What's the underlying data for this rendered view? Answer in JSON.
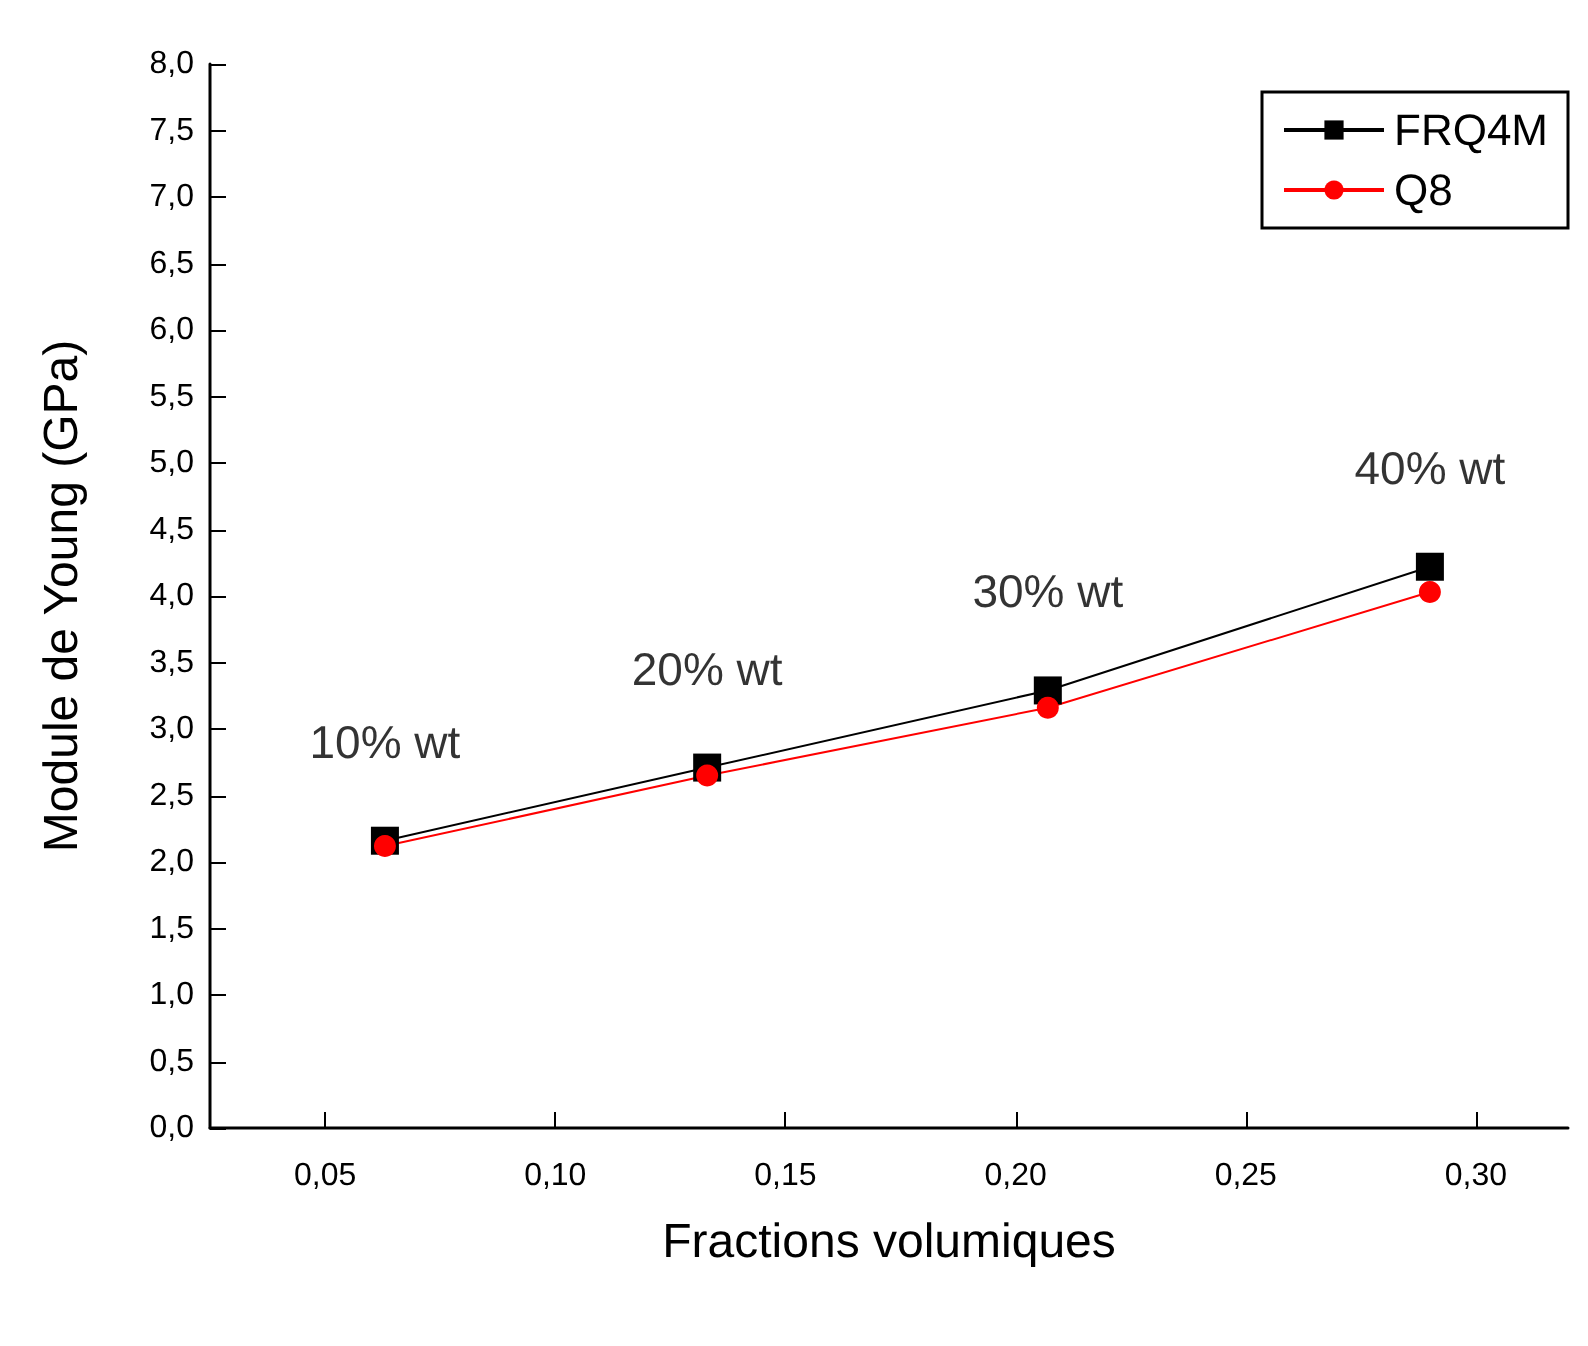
{
  "chart_data": {
    "type": "line",
    "xlabel": "Fractions volumiques",
    "ylabel": "Module de Young (GPa)",
    "xlim": [
      0.025,
      0.32
    ],
    "xticks": [
      {
        "value": 0.05,
        "label": "0,05"
      },
      {
        "value": 0.1,
        "label": "0,10"
      },
      {
        "value": 0.15,
        "label": "0,15"
      },
      {
        "value": 0.2,
        "label": "0,20"
      },
      {
        "value": 0.25,
        "label": "0,25"
      },
      {
        "value": 0.3,
        "label": "0,30"
      }
    ],
    "ylim": [
      0,
      8
    ],
    "yticks": [
      {
        "value": 0,
        "label": "0,0"
      },
      {
        "value": 0.5,
        "label": "0,5"
      },
      {
        "value": 1,
        "label": "1,0"
      },
      {
        "value": 1.5,
        "label": "1,5"
      },
      {
        "value": 2,
        "label": "2,0"
      },
      {
        "value": 2.5,
        "label": "2,5"
      },
      {
        "value": 3,
        "label": "3,0"
      },
      {
        "value": 3.5,
        "label": "3,5"
      },
      {
        "value": 4,
        "label": "4,0"
      },
      {
        "value": 4.5,
        "label": "4,5"
      },
      {
        "value": 5,
        "label": "5,0"
      },
      {
        "value": 5.5,
        "label": "5,5"
      },
      {
        "value": 6,
        "label": "6,0"
      },
      {
        "value": 6.5,
        "label": "6,5"
      },
      {
        "value": 7,
        "label": "7,0"
      },
      {
        "value": 7.5,
        "label": "7,5"
      },
      {
        "value": 8,
        "label": "8,0"
      }
    ],
    "x": [
      0.063,
      0.133,
      0.207,
      0.29
    ],
    "series": [
      {
        "name": "FRQ4M",
        "color": "#000000",
        "marker": "square",
        "values": [
          2.16,
          2.71,
          3.29,
          4.22
        ]
      },
      {
        "name": "Q8",
        "color": "#ff0000",
        "marker": "circle",
        "values": [
          2.12,
          2.65,
          3.16,
          4.03
        ]
      }
    ],
    "annotations": [
      "10% wt",
      "20% wt",
      "30% wt",
      "40% wt"
    ],
    "legend": "top right",
    "grid": false,
    "line_style": "solid"
  }
}
